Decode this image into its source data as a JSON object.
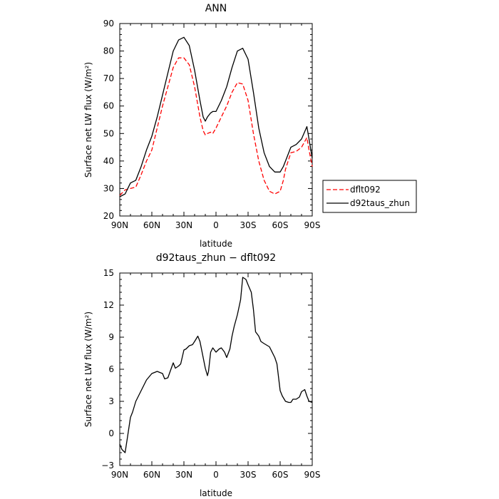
{
  "chart_data": [
    {
      "type": "line",
      "title": "ANN",
      "xlabel": "latitude",
      "ylabel": "Surface net LW flux (W/m²)",
      "xlim": [
        90,
        -90
      ],
      "ylim": [
        20,
        90
      ],
      "xticks": [
        90,
        60,
        30,
        0,
        -30,
        -60,
        -90
      ],
      "xtick_labels": [
        "90N",
        "60N",
        "30N",
        "0",
        "30S",
        "60S",
        "90S"
      ],
      "yticks": [
        20,
        30,
        40,
        50,
        60,
        70,
        80,
        90
      ],
      "ytick_labels": [
        "20",
        "30",
        "40",
        "50",
        "60",
        "70",
        "80",
        "90"
      ],
      "grid": false,
      "legend": "right, outside plot",
      "x": [
        90,
        85,
        80,
        75,
        70,
        65,
        60,
        55,
        50,
        45,
        40,
        35,
        30,
        25,
        20,
        15,
        12,
        10,
        8,
        5,
        3,
        0,
        -5,
        -10,
        -15,
        -20,
        -25,
        -30,
        -35,
        -40,
        -45,
        -50,
        -55,
        -60,
        -63,
        -65,
        -70,
        -75,
        -80,
        -85,
        -87,
        -90
      ],
      "series": [
        {
          "name": "dflt092",
          "color": "#ff0000",
          "dash": true,
          "values": [
            27.5,
            29.5,
            30,
            30.5,
            35,
            40,
            44,
            52,
            60,
            67,
            74,
            77.5,
            77.5,
            75,
            67,
            56,
            51,
            49.5,
            50,
            50.5,
            50,
            52,
            56,
            60,
            65,
            68.5,
            68,
            62,
            50,
            40,
            33,
            29,
            28,
            29,
            33,
            37,
            43,
            43.5,
            45,
            48.5,
            44,
            38
          ]
        },
        {
          "name": "d92taus_zhun",
          "color": "#000000",
          "dash": false,
          "values": [
            27,
            28,
            32,
            33,
            38,
            44,
            49,
            56,
            64,
            72,
            80,
            84,
            85,
            82,
            73,
            62,
            56,
            54.5,
            56,
            57.5,
            58,
            58,
            62,
            67,
            74,
            80,
            81,
            77,
            65,
            52,
            43,
            38,
            36,
            36,
            38,
            40,
            45,
            46,
            48,
            52.5,
            48,
            41
          ]
        }
      ]
    },
    {
      "type": "line",
      "title": "d92taus_zhun − dflt092",
      "xlabel": "latitude",
      "ylabel": "Surface net LW flux (W/m²)",
      "xlim": [
        90,
        -90
      ],
      "ylim": [
        -3,
        15
      ],
      "xticks": [
        90,
        60,
        30,
        0,
        -30,
        -60,
        -90
      ],
      "xtick_labels": [
        "90N",
        "60N",
        "30N",
        "0",
        "30S",
        "60S",
        "90S"
      ],
      "yticks": [
        -3,
        0,
        3,
        6,
        9,
        12,
        15
      ],
      "ytick_labels": [
        "−3",
        "0",
        "3",
        "6",
        "9",
        "12",
        "15"
      ],
      "grid": false,
      "x": [
        90,
        88,
        85,
        83,
        80,
        78,
        75,
        70,
        65,
        60,
        55,
        50,
        48,
        45,
        40,
        38,
        35,
        33,
        30,
        28,
        25,
        22,
        20,
        17,
        15,
        13,
        10,
        8,
        7,
        5,
        3,
        0,
        -3,
        -5,
        -8,
        -10,
        -13,
        -15,
        -17,
        -20,
        -23,
        -25,
        -28,
        -30,
        -33,
        -35,
        -37,
        -40,
        -42,
        -45,
        -50,
        -55,
        -57,
        -60,
        -62,
        -65,
        -68,
        -70,
        -72,
        -75,
        -78,
        -80,
        -83,
        -85,
        -87,
        -90
      ],
      "series": [
        {
          "name": "",
          "color": "#000000",
          "dash": false,
          "values": [
            -1,
            -1.5,
            -1.8,
            -0.5,
            1.5,
            2,
            3,
            4,
            5,
            5.6,
            5.8,
            5.6,
            5.1,
            5.2,
            6.6,
            6.1,
            6.3,
            6.5,
            7.8,
            7.9,
            8.2,
            8.3,
            8.6,
            9.1,
            8.6,
            7.6,
            6.1,
            5.4,
            5.8,
            7.6,
            8,
            7.6,
            7.9,
            8,
            7.6,
            7.1,
            7.9,
            9.1,
            10,
            11.1,
            12.5,
            14.6,
            14.4,
            13.9,
            13.2,
            11.6,
            9.5,
            9.1,
            8.6,
            8.4,
            8.1,
            7.1,
            6.5,
            4,
            3.5,
            3,
            2.9,
            2.9,
            3.2,
            3.2,
            3.4,
            3.9,
            4.1,
            3.5,
            3,
            2.9
          ]
        }
      ]
    }
  ]
}
